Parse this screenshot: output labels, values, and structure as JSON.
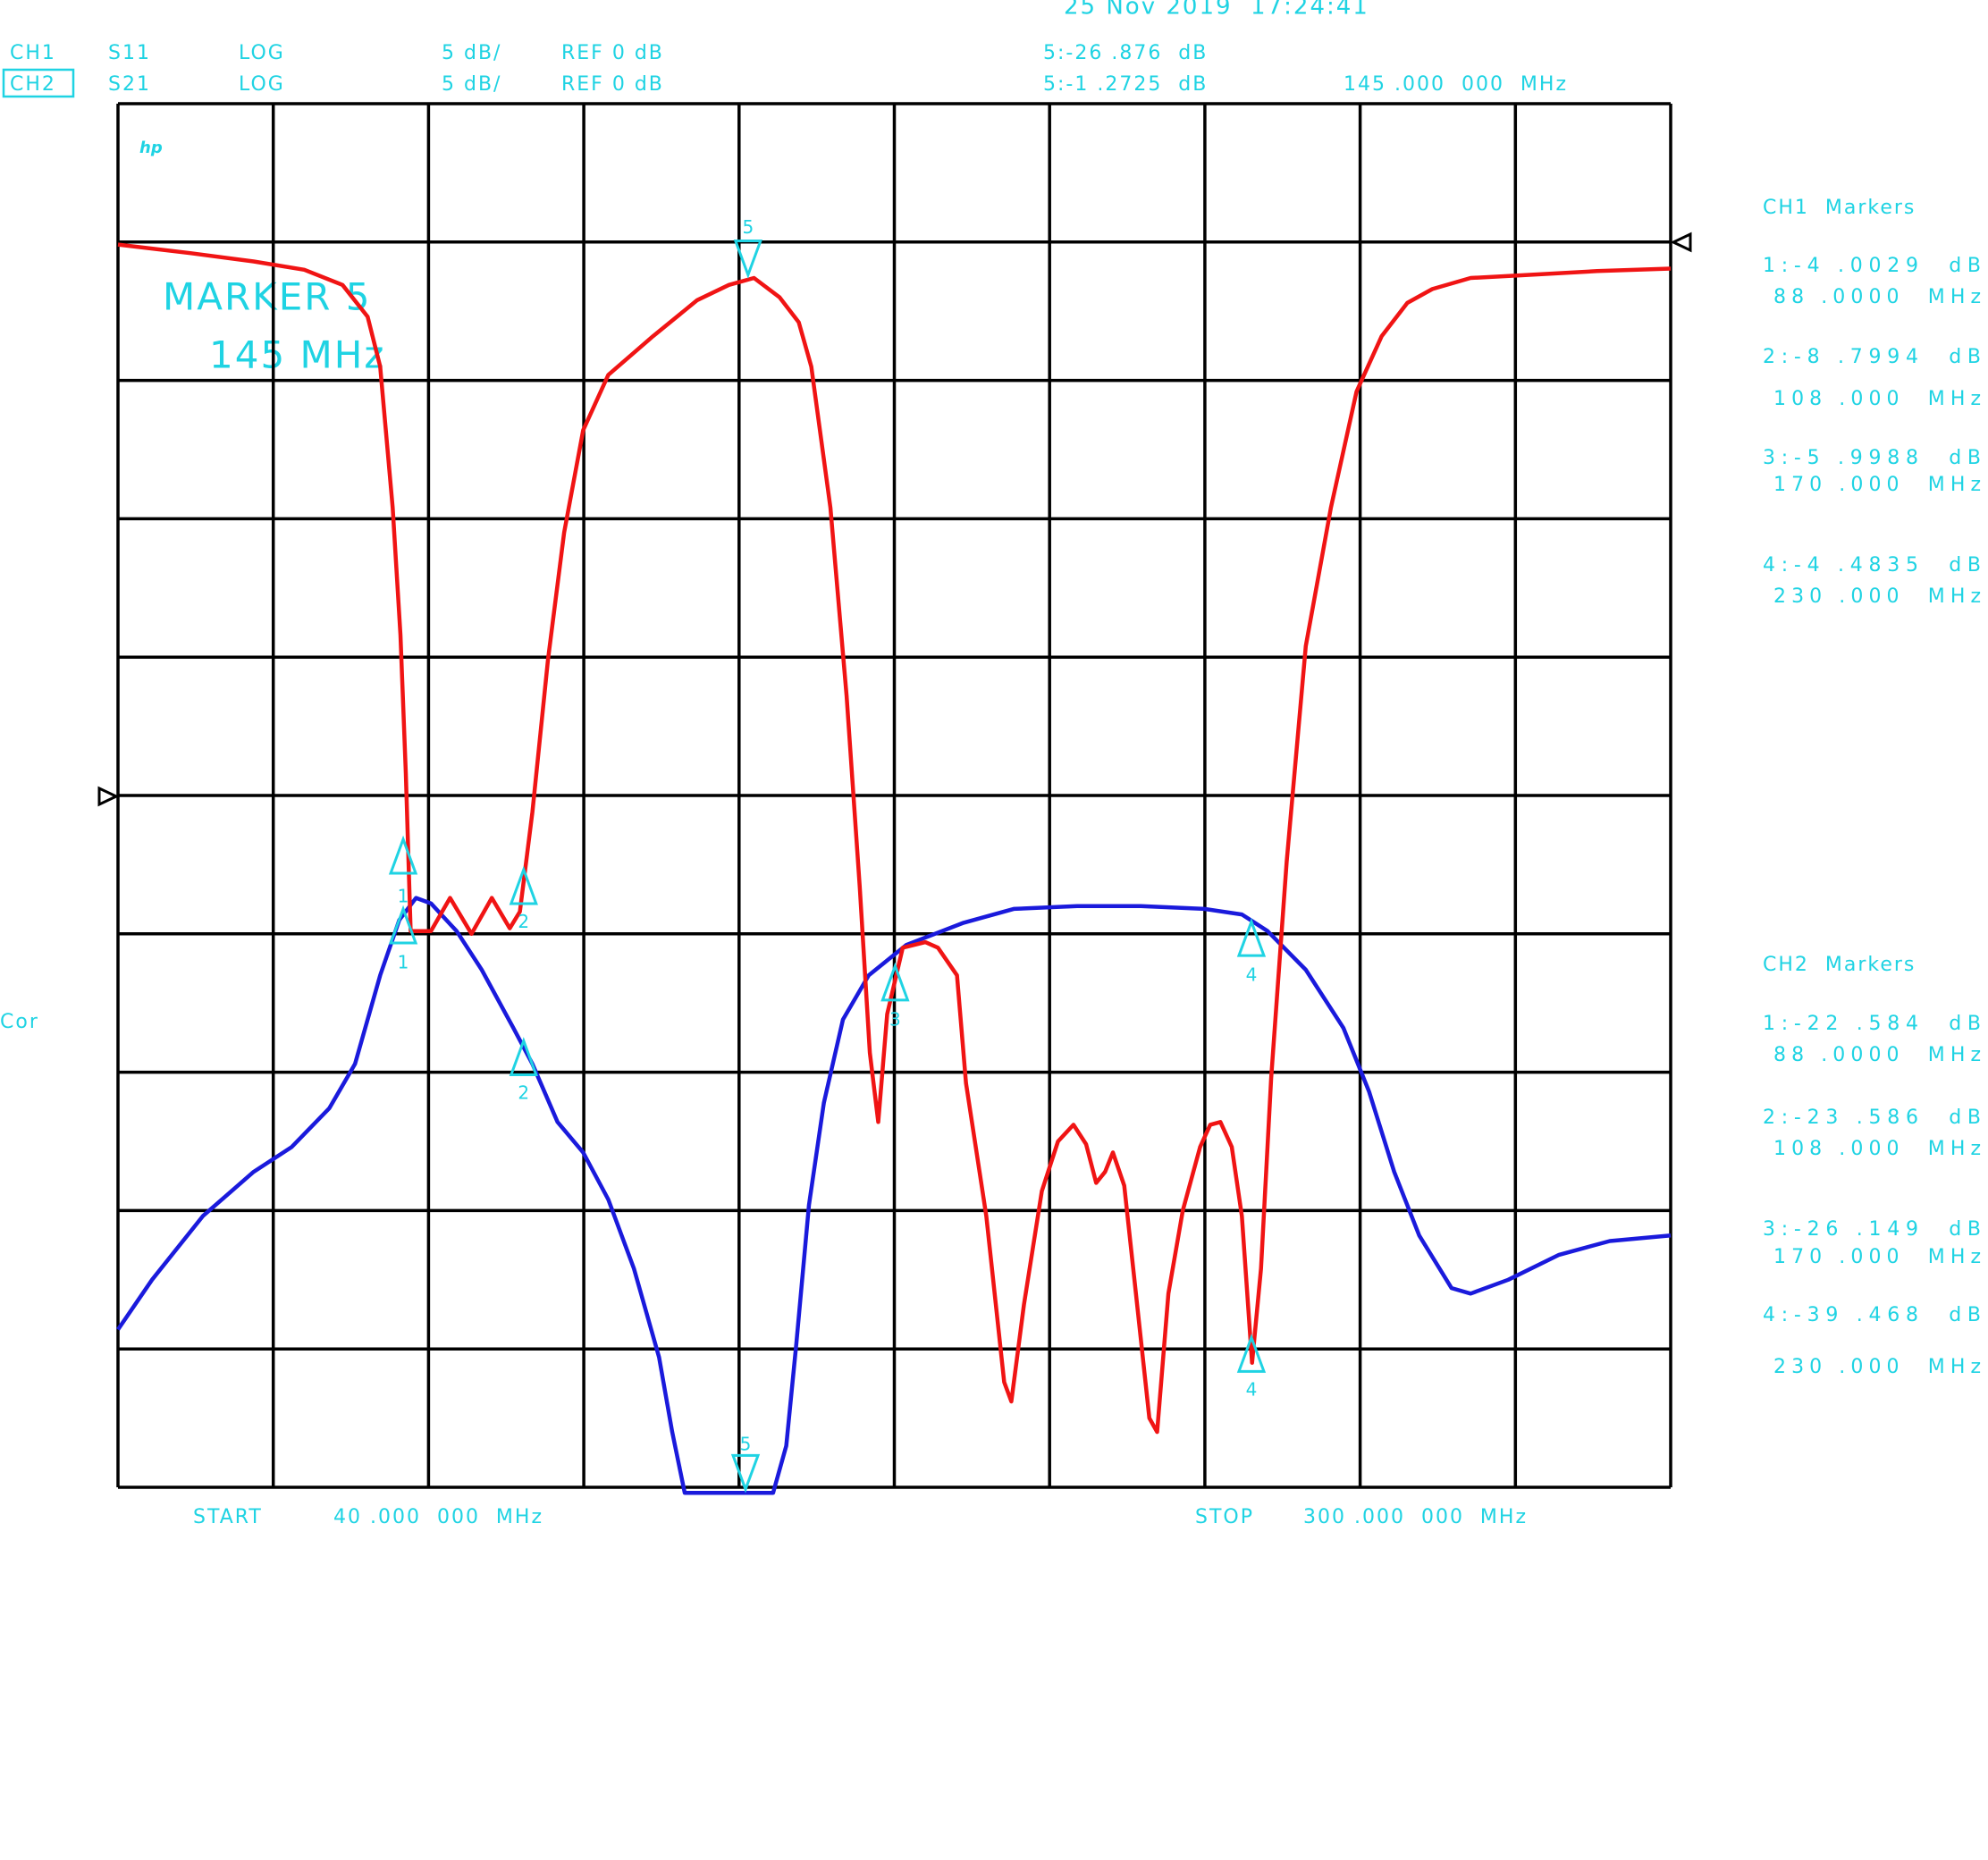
{
  "chart_data": {
    "type": "line",
    "timestamp": "25 Nov 2019  17:24:41",
    "logo": "hp",
    "annotations": [
      "MARKER 5",
      "145 MHz"
    ],
    "channels": [
      {
        "label": "CH1",
        "format": "LOG",
        "scale": "5 dB/",
        "reference": "REF 0 dB",
        "readout": "5:-26 .876  dB"
      },
      {
        "label": "CH2",
        "format": "LOG",
        "scale": "5 dB/",
        "reference": "REF 0 dB",
        "readout": "5:-1 .2725  dB"
      }
    ],
    "stimulus_readout": "145 .000  000  MHz",
    "start": {
      "label": "START",
      "value": "40 .000  000  MHz"
    },
    "stop": {
      "label": "STOP",
      "value": "300 .000  000  MHz"
    },
    "side_label": "Cor",
    "marker_tables": [
      {
        "title": "CH1  Markers",
        "entries": [
          {
            "reading": "1:-4 .0029  dB",
            "frequency": "88 .0000  MHz"
          },
          {
            "reading": "2:-8 .7994  dB",
            "frequency": "108 .000  MHz"
          },
          {
            "reading": "3:-5 .9988  dB",
            "frequency": "170 .000  MHz"
          },
          {
            "reading": "4:-4 .4835  dB",
            "frequency": "230 .000  MHz"
          }
        ]
      },
      {
        "title": "CH2  Markers",
        "entries": [
          {
            "reading": "1:-22 .584  dB",
            "frequency": "88 .0000  MHz"
          },
          {
            "reading": "2:-23 .586  dB",
            "frequency": "108 .000  MHz"
          },
          {
            "reading": "3:-26 .149  dB",
            "frequency": "170 .000  MHz"
          },
          {
            "reading": "4:-39 .468  dB",
            "frequency": "230 .000  MHz"
          }
        ]
      }
    ],
    "trace_markers": [
      "1",
      "1",
      "2",
      "2",
      "3",
      "4",
      "4",
      "5",
      "5"
    ],
    "xlim": [
      40,
      300
    ],
    "xticks": [
      40,
      66,
      92,
      118,
      144,
      170,
      196,
      222,
      248,
      274,
      300
    ],
    "ylim": [
      -25,
      25
    ],
    "yticks": [
      -25,
      -20,
      -15,
      -10,
      -5,
      0,
      5,
      10,
      15,
      20,
      25
    ],
    "y2lim": [
      -45,
      5
    ],
    "grid": true,
    "series": [
      {
        "name": "S11",
        "color": "#1a1adc",
        "x": [
          40,
          45.7,
          54.2,
          62.7,
          69.1,
          75.4,
          79.7,
          83.9,
          87.1,
          89.9,
          92.4,
          96.7,
          100.9,
          106.2,
          109.4,
          113.6,
          117.9,
          122.1,
          126.4,
          130.6,
          132.8,
          134.9,
          149.7,
          151.9,
          153.6,
          155.7,
          158.2,
          161.4,
          165.7,
          172.0,
          181.6,
          190.0,
          200.6,
          211.3,
          221.9,
          228.2,
          232.5,
          238.9,
          245.2,
          249.5,
          253.7,
          257.9,
          263.3,
          266.5,
          272.8,
          281.3,
          289.8,
          300
        ],
        "values": [
          -19.3,
          -17.5,
          -15.2,
          -13.6,
          -12.7,
          -11.3,
          -9.7,
          -6.5,
          -4.5,
          -3.7,
          -3.9,
          -4.9,
          -6.3,
          -8.4,
          -9.7,
          -11.8,
          -12.9,
          -14.6,
          -17.1,
          -20.3,
          -23.0,
          -25.2,
          -25.2,
          -23.5,
          -19.8,
          -14.8,
          -11.1,
          -8.1,
          -6.5,
          -5.4,
          -4.6,
          -4.1,
          -4.0,
          -4.0,
          -4.1,
          -4.3,
          -4.9,
          -6.3,
          -8.4,
          -10.7,
          -13.6,
          -15.9,
          -17.8,
          -18.0,
          -17.5,
          -16.6,
          -16.1,
          -15.9
        ]
      },
      {
        "name": "S21",
        "color": "#f01414",
        "axis": "y2",
        "x": [
          40,
          52.1,
          62.7,
          71.2,
          77.6,
          81.8,
          83.9,
          86.0,
          87.3,
          88.2,
          89,
          92.4,
          95.6,
          99.2,
          102.6,
          105.6,
          107.3,
          109.4,
          112.0,
          114.7,
          117.9,
          122.1,
          129.6,
          137.0,
          142.3,
          146.5,
          150.8,
          154.0,
          156.1,
          159.3,
          162.0,
          164.2,
          165.9,
          167.3,
          168.8,
          171.4,
          175.2,
          177.3,
          180.5,
          182.0,
          185.4,
          188.4,
          189.6,
          191.7,
          194.7,
          197.4,
          200.0,
          202.1,
          203.8,
          205.3,
          206.6,
          208.5,
          210.2,
          212.7,
          214.0,
          215.9,
          218.3,
          221.2,
          222.9,
          224.6,
          226.5,
          228.2,
          229.9,
          231.4,
          233.1,
          235.7,
          238.9,
          243.1,
          247.4,
          251.6,
          255.9,
          260.1,
          266.5,
          275.0,
          287.7,
          300
        ],
        "values": [
          -0.09,
          -0.4,
          -0.7,
          -1.0,
          -1.55,
          -2.7,
          -4.5,
          -9.6,
          -14.2,
          -19.2,
          -24.9,
          -24.9,
          -23.7,
          -25.0,
          -23.7,
          -24.8,
          -24.2,
          -20.6,
          -15.1,
          -10.5,
          -6.8,
          -4.8,
          -3.4,
          -2.1,
          -1.55,
          -1.3,
          -2.0,
          -2.9,
          -4.5,
          -9.6,
          -16.4,
          -23.3,
          -29.3,
          -31.8,
          -27.9,
          -25.5,
          -25.3,
          -25.5,
          -26.5,
          -30.4,
          -35.2,
          -41.2,
          -41.9,
          -38.4,
          -34.3,
          -32.5,
          -31.9,
          -32.6,
          -34.0,
          -33.6,
          -32.9,
          -34.1,
          -37.5,
          -42.5,
          -43.0,
          -38.0,
          -35.0,
          -32.7,
          -31.9,
          -31.8,
          -32.7,
          -35.2,
          -40.5,
          -37.1,
          -30.2,
          -22.4,
          -14.6,
          -9.6,
          -5.4,
          -3.4,
          -2.2,
          -1.7,
          -1.3,
          -1.2,
          -1.05,
          -0.96
        ]
      }
    ]
  }
}
